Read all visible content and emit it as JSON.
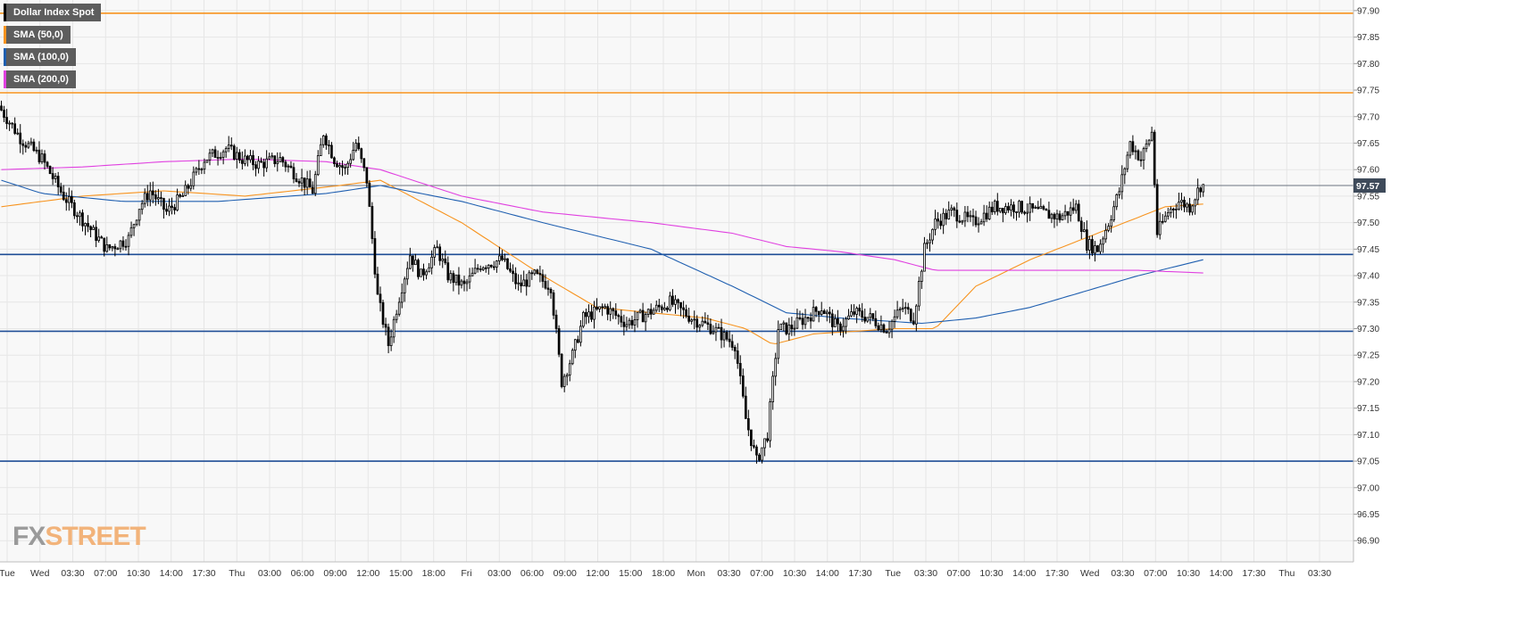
{
  "legend": [
    {
      "label": "Dollar Index Spot",
      "color": "#000000"
    },
    {
      "label": "SMA (50,0)",
      "color": "#f7931e"
    },
    {
      "label": "SMA (100,0)",
      "color": "#1f5fb0"
    },
    {
      "label": "SMA (200,0)",
      "color": "#e040e0"
    }
  ],
  "watermark": {
    "part1": "FX",
    "part2": "STREET"
  },
  "chart_data": {
    "type": "candlestick",
    "title": "Dollar Index Spot",
    "ylim": [
      96.86,
      97.92
    ],
    "y_ticks": [
      "97.90",
      "97.85",
      "97.80",
      "97.75",
      "97.70",
      "97.65",
      "97.60",
      "97.55",
      "97.50",
      "97.45",
      "97.40",
      "97.35",
      "97.30",
      "97.25",
      "97.20",
      "97.15",
      "97.10",
      "97.05",
      "97.00",
      "96.95",
      "96.90"
    ],
    "x_ticks": [
      "Tue",
      "Wed",
      "03:30",
      "07:00",
      "10:30",
      "14:00",
      "17:30",
      "Thu",
      "03:00",
      "06:00",
      "09:00",
      "12:00",
      "15:00",
      "18:00",
      "Fri",
      "03:00",
      "06:00",
      "09:00",
      "12:00",
      "15:00",
      "18:00",
      "Mon",
      "03:30",
      "07:00",
      "10:30",
      "14:00",
      "17:30",
      "Tue",
      "03:30",
      "07:00",
      "10:30",
      "14:00",
      "17:30",
      "Wed",
      "03:30",
      "07:00",
      "10:30",
      "14:00",
      "17:30",
      "Thu",
      "03:30"
    ],
    "current_price": "97.57",
    "current_value": 97.57,
    "horizontal_levels": [
      {
        "value": 97.895,
        "color": "#f7931e"
      },
      {
        "value": 97.745,
        "color": "#f7931e"
      },
      {
        "value": 97.44,
        "color": "#1f4e96"
      },
      {
        "value": 97.295,
        "color": "#1f4e96"
      },
      {
        "value": 97.05,
        "color": "#1f4e96"
      }
    ],
    "price_path": [
      [
        0,
        97.72
      ],
      [
        8,
        97.66
      ],
      [
        16,
        97.62
      ],
      [
        24,
        97.55
      ],
      [
        32,
        97.5
      ],
      [
        40,
        97.45
      ],
      [
        48,
        97.47
      ],
      [
        52,
        97.53
      ],
      [
        56,
        97.56
      ],
      [
        62,
        97.52
      ],
      [
        68,
        97.55
      ],
      [
        76,
        97.62
      ],
      [
        84,
        97.64
      ],
      [
        90,
        97.62
      ],
      [
        96,
        97.61
      ],
      [
        104,
        97.62
      ],
      [
        108,
        97.6
      ],
      [
        116,
        97.56
      ],
      [
        120,
        97.67
      ],
      [
        124,
        97.62
      ],
      [
        128,
        97.6
      ],
      [
        132,
        97.65
      ],
      [
        136,
        97.58
      ],
      [
        140,
        97.36
      ],
      [
        144,
        97.27
      ],
      [
        148,
        97.36
      ],
      [
        152,
        97.44
      ],
      [
        156,
        97.4
      ],
      [
        162,
        97.45
      ],
      [
        166,
        97.4
      ],
      [
        172,
        97.38
      ],
      [
        178,
        97.42
      ],
      [
        186,
        97.43
      ],
      [
        192,
        97.38
      ],
      [
        198,
        97.4
      ],
      [
        204,
        97.38
      ],
      [
        208,
        97.2
      ],
      [
        212,
        97.25
      ],
      [
        216,
        97.32
      ],
      [
        224,
        97.34
      ],
      [
        232,
        97.31
      ],
      [
        240,
        97.33
      ],
      [
        248,
        97.35
      ],
      [
        256,
        97.32
      ],
      [
        264,
        97.3
      ],
      [
        272,
        97.27
      ],
      [
        276,
        97.13
      ],
      [
        280,
        97.05
      ],
      [
        284,
        97.1
      ],
      [
        288,
        97.3
      ],
      [
        292,
        97.3
      ],
      [
        298,
        97.32
      ],
      [
        304,
        97.34
      ],
      [
        310,
        97.3
      ],
      [
        316,
        97.33
      ],
      [
        322,
        97.32
      ],
      [
        328,
        97.3
      ],
      [
        334,
        97.34
      ],
      [
        338,
        97.32
      ],
      [
        342,
        97.45
      ],
      [
        346,
        97.5
      ],
      [
        352,
        97.52
      ],
      [
        360,
        97.5
      ],
      [
        368,
        97.53
      ],
      [
        376,
        97.53
      ],
      [
        384,
        97.52
      ],
      [
        392,
        97.51
      ],
      [
        398,
        97.53
      ],
      [
        402,
        97.46
      ],
      [
        406,
        97.45
      ],
      [
        410,
        97.5
      ],
      [
        414,
        97.56
      ],
      [
        418,
        97.65
      ],
      [
        422,
        97.62
      ],
      [
        426,
        97.67
      ],
      [
        428,
        97.48
      ],
      [
        432,
        97.52
      ],
      [
        436,
        97.54
      ],
      [
        440,
        97.53
      ],
      [
        444,
        97.57
      ]
    ],
    "sma50": [
      [
        0,
        97.53
      ],
      [
        30,
        97.55
      ],
      [
        60,
        97.56
      ],
      [
        90,
        97.55
      ],
      [
        125,
        97.57
      ],
      [
        140,
        97.58
      ],
      [
        170,
        97.5
      ],
      [
        200,
        97.4
      ],
      [
        220,
        97.34
      ],
      [
        260,
        97.32
      ],
      [
        275,
        97.3
      ],
      [
        285,
        97.27
      ],
      [
        300,
        97.29
      ],
      [
        330,
        97.3
      ],
      [
        345,
        97.3
      ],
      [
        360,
        97.38
      ],
      [
        380,
        97.43
      ],
      [
        400,
        97.47
      ],
      [
        420,
        97.51
      ],
      [
        430,
        97.53
      ],
      [
        444,
        97.535
      ]
    ],
    "sma100": [
      [
        0,
        97.58
      ],
      [
        15,
        97.555
      ],
      [
        45,
        97.54
      ],
      [
        80,
        97.54
      ],
      [
        120,
        97.555
      ],
      [
        140,
        97.57
      ],
      [
        170,
        97.54
      ],
      [
        200,
        97.5
      ],
      [
        240,
        97.45
      ],
      [
        270,
        97.38
      ],
      [
        290,
        97.33
      ],
      [
        310,
        97.32
      ],
      [
        340,
        97.31
      ],
      [
        360,
        97.32
      ],
      [
        380,
        97.34
      ],
      [
        400,
        97.37
      ],
      [
        420,
        97.4
      ],
      [
        444,
        97.43
      ]
    ],
    "sma200": [
      [
        0,
        97.6
      ],
      [
        30,
        97.605
      ],
      [
        60,
        97.615
      ],
      [
        90,
        97.62
      ],
      [
        120,
        97.615
      ],
      [
        140,
        97.6
      ],
      [
        170,
        97.55
      ],
      [
        200,
        97.52
      ],
      [
        240,
        97.5
      ],
      [
        270,
        97.48
      ],
      [
        290,
        97.455
      ],
      [
        310,
        97.445
      ],
      [
        330,
        97.43
      ],
      [
        345,
        97.41
      ],
      [
        380,
        97.41
      ],
      [
        420,
        97.41
      ],
      [
        444,
        97.405
      ]
    ]
  }
}
